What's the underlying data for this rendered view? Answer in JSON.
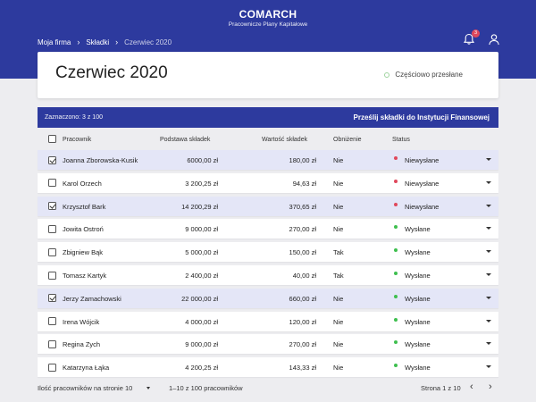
{
  "header": {
    "logo": "COMARCH",
    "subtitle": "Pracownicze Plany Kapitałowe",
    "breadcrumbs": [
      "Moja firma",
      "Składki",
      "Czerwiec 2020"
    ],
    "notification_count": "3",
    "bg_color": "#2d3a9e"
  },
  "page": {
    "title": "Czerwiec 2020",
    "status": "Częściowo przesłane"
  },
  "selection": {
    "count_text": "Zaznaczono: 3 z 100",
    "action_label": "Prześlij składki do Instytucji Finansowej"
  },
  "table": {
    "columns": [
      "Pracownik",
      "Podstawa składek",
      "Wartość składek",
      "Obniżenie",
      "Status"
    ],
    "rows": [
      {
        "name": "Joanna Zborowska-Kusik",
        "base": "6000,00 zł",
        "value": "180,00 zł",
        "reduction": "Nie",
        "status": "Niewysłane",
        "checked": true
      },
      {
        "name": "Karol Orzech",
        "base": "3 200,25 zł",
        "value": "94,63 zł",
        "reduction": "Nie",
        "status": "Niewysłane",
        "checked": false
      },
      {
        "name": "Krzysztof Bark",
        "base": "14 200,29 zł",
        "value": "370,65 zł",
        "reduction": "Nie",
        "status": "Niewysłane",
        "checked": true
      },
      {
        "name": "Jowita Ostroń",
        "base": "9 000,00 zł",
        "value": "270,00 zł",
        "reduction": "Nie",
        "status": "Wysłane",
        "checked": false
      },
      {
        "name": "Zbigniew Bąk",
        "base": "5 000,00 zł",
        "value": "150,00 zł",
        "reduction": "Tak",
        "status": "Wysłane",
        "checked": false
      },
      {
        "name": "Tomasz Kartyk",
        "base": "2 400,00 zł",
        "value": "40,00 zł",
        "reduction": "Tak",
        "status": "Wysłane",
        "checked": false
      },
      {
        "name": "Jerzy Zamachowski",
        "base": "22 000,00 zł",
        "value": "660,00 zł",
        "reduction": "Nie",
        "status": "Wysłane",
        "checked": true
      },
      {
        "name": "Irena Wójcik",
        "base": "4 000,00 zł",
        "value": "120,00 zł",
        "reduction": "Nie",
        "status": "Wysłane",
        "checked": false
      },
      {
        "name": "Regina Zych",
        "base": "9 000,00 zł",
        "value": "270,00 zł",
        "reduction": "Nie",
        "status": "Wysłane",
        "checked": false
      },
      {
        "name": "Katarzyna Łąka",
        "base": "4 200,25 zł",
        "value": "143,33 zł",
        "reduction": "Nie",
        "status": "Wysłane",
        "checked": false
      }
    ]
  },
  "status_colors": {
    "Niewysłane": "#e0485c",
    "Wysłane": "#3fbf4f"
  },
  "footer": {
    "per_page_label": "Ilość pracowników na stronie 10",
    "range": "1–10 z 100 pracowników",
    "page": "Strona 1 z 10"
  }
}
